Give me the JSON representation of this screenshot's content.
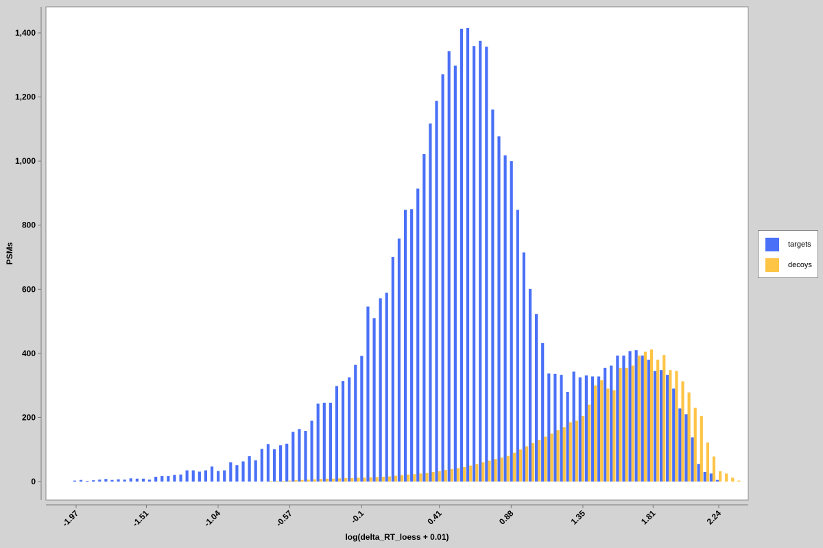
{
  "chart_data": {
    "type": "bar",
    "title": "",
    "xlabel": "log(delta_RT_loess + 0.01)",
    "ylabel": "PSMs",
    "ylim": [
      0,
      1480
    ],
    "xlim": [
      -2.1,
      2.34
    ],
    "grid": false,
    "legend_position": "right",
    "y_ticks": [
      0,
      200,
      400,
      600,
      800,
      1000,
      1200,
      1400
    ],
    "y_tick_labels": [
      "0",
      "200",
      "400",
      "600",
      "800",
      "1,000",
      "1,200",
      "1,400"
    ],
    "x_ticks": [
      -1.97,
      -1.51,
      -1.04,
      -0.57,
      -0.1,
      0.41,
      0.88,
      1.35,
      1.81,
      2.24
    ],
    "x_tick_labels": [
      "-1.97",
      "-1.51",
      "-1.04",
      "-0.57",
      "-0.1",
      "0.41",
      "0.88",
      "1.35",
      "1.81",
      "2.24"
    ],
    "bin_start": -1.97,
    "bin_width": 0.03125,
    "series": [
      {
        "name": "targets",
        "color": "#4a70f7",
        "values": [
          3,
          5,
          2,
          4,
          6,
          8,
          5,
          7,
          6,
          10,
          9,
          9,
          6,
          15,
          17,
          17,
          21,
          22,
          35,
          35,
          31,
          35,
          47,
          33,
          35,
          60,
          51,
          63,
          79,
          66,
          102,
          117,
          101,
          113,
          118,
          155,
          164,
          158,
          190,
          243,
          246,
          246,
          298,
          314,
          325,
          364,
          392,
          546,
          510,
          572,
          589,
          701,
          758,
          848,
          850,
          914,
          1022,
          1117,
          1188,
          1271,
          1343,
          1298,
          1413,
          1415,
          1359,
          1375,
          1357,
          1161,
          1077,
          1018,
          1000,
          848,
          715,
          601,
          523,
          432,
          337,
          336,
          333,
          280,
          343,
          325,
          331,
          328,
          328,
          355,
          362,
          393,
          393,
          407,
          410,
          393,
          380,
          345,
          348,
          333,
          290,
          228,
          210,
          138,
          55,
          30,
          25,
          5
        ]
      },
      {
        "name": "decoys",
        "color": "#fec446",
        "values": [
          0,
          0,
          0,
          0,
          0,
          0,
          0,
          0,
          0,
          0,
          0,
          0,
          0,
          0,
          0,
          0,
          0,
          0,
          0,
          0,
          0,
          0,
          0,
          0,
          0,
          0,
          0,
          0,
          0,
          0,
          0,
          1,
          1,
          2,
          3,
          4,
          5,
          6,
          7,
          8,
          9,
          9,
          10,
          11,
          11,
          12,
          12,
          13,
          14,
          15,
          16,
          18,
          20,
          22,
          23,
          25,
          27,
          30,
          32,
          36,
          39,
          42,
          45,
          50,
          55,
          60,
          65,
          70,
          75,
          80,
          90,
          100,
          110,
          120,
          130,
          140,
          150,
          160,
          170,
          185,
          190,
          205,
          240,
          300,
          316,
          290,
          285,
          355,
          355,
          362,
          393,
          405,
          412,
          380,
          395,
          348,
          345,
          313,
          278,
          230,
          205,
          122,
          78,
          32,
          25,
          12,
          3
        ]
      }
    ]
  }
}
